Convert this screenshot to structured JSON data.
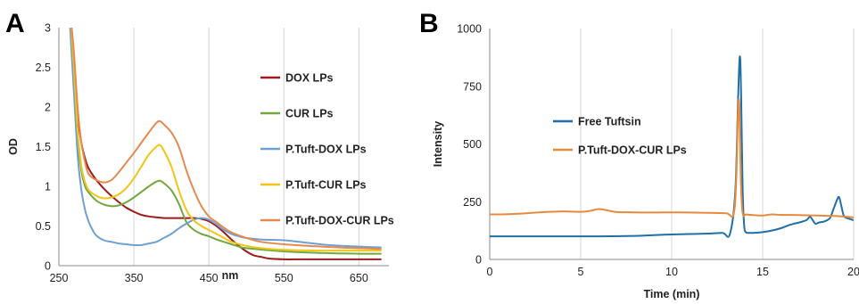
{
  "panels": {
    "A": {
      "letter": "A"
    },
    "B": {
      "letter": "B"
    }
  },
  "chart_data": [
    {
      "type": "line",
      "panel": "A",
      "xlabel": "nm",
      "ylabel": "OD",
      "xlim": [
        250,
        690
      ],
      "ylim": [
        0,
        3
      ],
      "xticks": [
        250,
        350,
        450,
        550,
        650
      ],
      "xtick_labels": [
        "250",
        "350",
        "450",
        "550",
        "650"
      ],
      "yticks": [
        0,
        0.5,
        1,
        1.5,
        2,
        2.5,
        3
      ],
      "ytick_labels": [
        "0",
        "0.5",
        "1",
        "1.5",
        "2",
        "2.5",
        "3"
      ],
      "grid": "vertical",
      "legend_position": "right",
      "series": [
        {
          "name": "DOX LPs",
          "color": "#9e1b1b",
          "x": [
            265,
            270,
            275,
            280,
            285,
            290,
            300,
            310,
            320,
            330,
            340,
            350,
            360,
            370,
            380,
            390,
            400,
            410,
            420,
            430,
            440,
            450,
            460,
            470,
            480,
            490,
            500,
            510,
            520,
            530,
            550,
            570,
            590,
            610,
            650,
            680
          ],
          "y": [
            3.2,
            2.6,
            1.9,
            1.55,
            1.35,
            1.22,
            1.08,
            0.97,
            0.88,
            0.8,
            0.73,
            0.68,
            0.64,
            0.62,
            0.61,
            0.6,
            0.6,
            0.6,
            0.6,
            0.6,
            0.59,
            0.56,
            0.5,
            0.42,
            0.33,
            0.25,
            0.18,
            0.13,
            0.11,
            0.09,
            0.08,
            0.08,
            0.08,
            0.08,
            0.08,
            0.08
          ]
        },
        {
          "name": "CUR LPs",
          "color": "#72a83e",
          "x": [
            265,
            270,
            275,
            280,
            285,
            290,
            300,
            310,
            320,
            330,
            340,
            350,
            360,
            370,
            380,
            385,
            390,
            400,
            410,
            420,
            430,
            440,
            450,
            460,
            470,
            480,
            490,
            500,
            550,
            600,
            650,
            680
          ],
          "y": [
            3.2,
            2.4,
            1.6,
            1.2,
            1.0,
            0.92,
            0.82,
            0.77,
            0.75,
            0.76,
            0.8,
            0.86,
            0.93,
            1.0,
            1.06,
            1.07,
            1.04,
            0.95,
            0.78,
            0.55,
            0.45,
            0.4,
            0.37,
            0.33,
            0.3,
            0.27,
            0.24,
            0.22,
            0.18,
            0.16,
            0.15,
            0.15
          ]
        },
        {
          "name": "P.Tuft-DOX LPs",
          "color": "#6fa0d2",
          "x": [
            265,
            270,
            275,
            280,
            285,
            290,
            295,
            300,
            310,
            320,
            330,
            340,
            350,
            360,
            370,
            380,
            390,
            400,
            410,
            420,
            430,
            440,
            450,
            460,
            470,
            480,
            490,
            500,
            520,
            550,
            580,
            610,
            650,
            680
          ],
          "y": [
            3.0,
            2.2,
            1.4,
            0.95,
            0.7,
            0.55,
            0.45,
            0.38,
            0.32,
            0.3,
            0.28,
            0.27,
            0.26,
            0.26,
            0.28,
            0.3,
            0.35,
            0.4,
            0.47,
            0.53,
            0.58,
            0.6,
            0.58,
            0.52,
            0.45,
            0.4,
            0.37,
            0.35,
            0.33,
            0.32,
            0.29,
            0.26,
            0.24,
            0.23
          ]
        },
        {
          "name": "P.Tuft-CUR LPs",
          "color": "#f2c417",
          "x": [
            265,
            270,
            275,
            280,
            285,
            290,
            300,
            310,
            320,
            330,
            340,
            350,
            360,
            370,
            380,
            385,
            390,
            400,
            410,
            420,
            430,
            440,
            450,
            460,
            470,
            480,
            500,
            520,
            550,
            600,
            650,
            680
          ],
          "y": [
            3.2,
            2.5,
            1.7,
            1.25,
            1.05,
            0.95,
            0.88,
            0.85,
            0.86,
            0.9,
            0.98,
            1.1,
            1.25,
            1.4,
            1.5,
            1.52,
            1.45,
            1.25,
            0.95,
            0.7,
            0.57,
            0.5,
            0.45,
            0.4,
            0.35,
            0.3,
            0.25,
            0.22,
            0.2,
            0.19,
            0.19,
            0.19
          ]
        },
        {
          "name": "P.Tuft-DOX-CUR LPs",
          "color": "#e58a4f",
          "x": [
            265,
            270,
            275,
            280,
            285,
            290,
            300,
            310,
            320,
            330,
            340,
            350,
            360,
            370,
            380,
            385,
            390,
            400,
            410,
            420,
            430,
            440,
            450,
            460,
            470,
            480,
            500,
            520,
            550,
            600,
            650,
            680
          ],
          "y": [
            3.2,
            2.7,
            2.0,
            1.55,
            1.3,
            1.15,
            1.08,
            1.05,
            1.08,
            1.18,
            1.3,
            1.42,
            1.55,
            1.68,
            1.8,
            1.82,
            1.78,
            1.68,
            1.5,
            1.2,
            0.95,
            0.75,
            0.62,
            0.55,
            0.48,
            0.42,
            0.35,
            0.3,
            0.27,
            0.24,
            0.22,
            0.21
          ]
        }
      ]
    },
    {
      "type": "line",
      "panel": "B",
      "xlabel": "Time (min)",
      "ylabel": "Intensity",
      "xlim": [
        0,
        20
      ],
      "ylim": [
        0,
        1000
      ],
      "xticks": [
        0,
        5,
        10,
        15,
        20
      ],
      "xtick_labels": [
        "0",
        "5",
        "10",
        "15",
        "20"
      ],
      "yticks": [
        0,
        250,
        500,
        750,
        1000
      ],
      "ytick_labels": [
        "0",
        "250",
        "500",
        "750",
        "1000"
      ],
      "grid": "vertical",
      "legend_position": "left",
      "series": [
        {
          "name": "Free Tuftsin",
          "color": "#1f6fa8",
          "x": [
            0,
            2,
            4,
            6,
            8,
            9,
            10,
            11,
            12,
            12.8,
            13.2,
            13.5,
            13.65,
            13.75,
            13.82,
            13.9,
            13.98,
            14.05,
            14.2,
            14.5,
            15,
            15.5,
            16,
            16.5,
            17,
            17.4,
            17.6,
            17.75,
            17.9,
            18.1,
            18.4,
            18.7,
            18.9,
            19.1,
            19.2,
            19.3,
            19.45,
            19.6,
            19.8,
            20
          ],
          "y": [
            100,
            100,
            100,
            100,
            102,
            105,
            108,
            110,
            112,
            115,
            110,
            300,
            700,
            880,
            700,
            300,
            150,
            120,
            115,
            115,
            118,
            125,
            135,
            150,
            160,
            170,
            185,
            170,
            155,
            160,
            165,
            180,
            220,
            260,
            270,
            240,
            190,
            180,
            175,
            170
          ]
        },
        {
          "name": "P.Tuft-DOX-CUR LPs",
          "color": "#e88a3e",
          "x": [
            0,
            1,
            2,
            3,
            4,
            5,
            5.5,
            6,
            6.5,
            7,
            8,
            9,
            10,
            11,
            12,
            13,
            13.4,
            13.55,
            13.65,
            13.72,
            13.8,
            13.9,
            14.1,
            14.5,
            15,
            15.5,
            16,
            17,
            18,
            19,
            20
          ],
          "y": [
            195,
            196,
            200,
            205,
            208,
            206,
            210,
            218,
            212,
            205,
            204,
            203,
            204,
            203,
            202,
            200,
            195,
            350,
            650,
            660,
            350,
            200,
            195,
            192,
            190,
            195,
            193,
            192,
            190,
            188,
            182
          ]
        }
      ]
    }
  ]
}
